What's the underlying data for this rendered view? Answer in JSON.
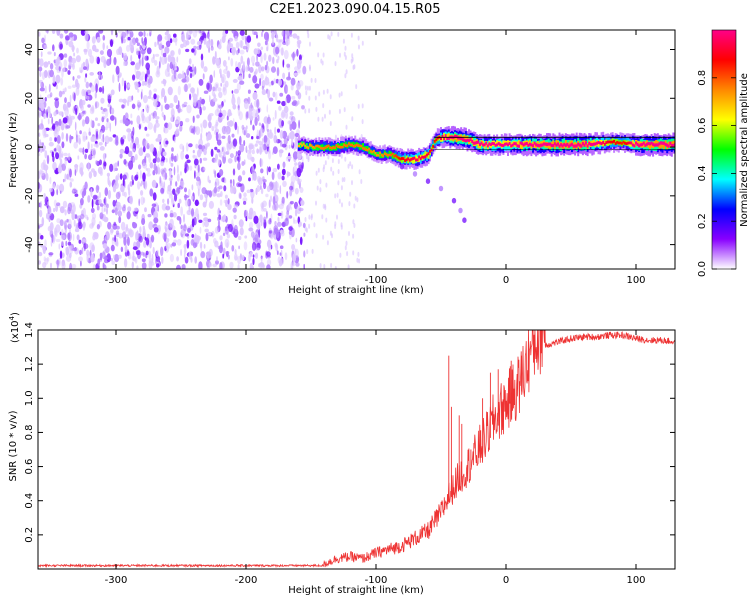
{
  "title": "C2E1.2023.090.04.15.R05",
  "chart_data": [
    {
      "type": "heatmap",
      "title": "C2E1.2023.090.04.15.R05",
      "xlabel": "Height of straight line (km)",
      "ylabel": "Frequency (Hz)",
      "xlim": [
        -360,
        130
      ],
      "ylim": [
        -50,
        48
      ],
      "xticks": [
        -300,
        -200,
        -100,
        0,
        100
      ],
      "yticks": [
        -40,
        -20,
        0,
        20,
        40
      ],
      "noise_region_x": [
        -360,
        -155
      ],
      "noise_intensity": 0.08,
      "signal_ridge": {
        "x": [
          -160,
          -150,
          -140,
          -130,
          -120,
          -110,
          -100,
          -90,
          -80,
          -70,
          -60,
          -55,
          -50,
          -40,
          -30,
          -20,
          -10,
          0,
          20,
          40,
          60,
          80,
          90,
          100,
          110,
          130
        ],
        "frequency": [
          1,
          0,
          0,
          0,
          1,
          0,
          -3,
          -3,
          -5,
          -5,
          -3,
          3,
          4,
          4,
          3,
          1,
          1,
          1,
          1,
          1,
          1,
          2,
          2,
          1,
          1,
          1
        ],
        "amplitude": [
          0.35,
          0.4,
          0.45,
          0.45,
          0.45,
          0.45,
          0.4,
          0.45,
          0.6,
          0.7,
          0.65,
          0.55,
          0.7,
          0.9,
          0.85,
          0.8,
          0.75,
          0.75,
          0.85,
          0.9,
          0.9,
          0.6,
          0.55,
          0.85,
          0.9,
          0.95
        ]
      },
      "branch": {
        "x": [
          -80,
          -70,
          -60,
          -50,
          -40,
          -35,
          -32
        ],
        "frequency": [
          -8,
          -11,
          -14,
          -17,
          -22,
          -26,
          -30
        ]
      }
    },
    {
      "type": "colorbar",
      "label": "Normalized spectral amplitude",
      "lim": [
        0,
        1
      ],
      "ticks": [
        "0.0",
        "0.2",
        "0.4",
        "0.6",
        "0.8"
      ],
      "colors": [
        "#ffffff",
        "#8800ff",
        "#0000ff",
        "#00ffff",
        "#00ff00",
        "#ffff00",
        "#ff8800",
        "#ff0000",
        "#ff0088"
      ]
    },
    {
      "type": "line",
      "xlabel": "Height of straight line (km)",
      "ylabel": "SNR (10 * v/v)",
      "yscale_label": "(x10",
      "yscale_exp": "4",
      "yscale_close": ")",
      "xlim": [
        -360,
        130
      ],
      "ylim": [
        0,
        1.4
      ],
      "xticks": [
        -300,
        -200,
        -100,
        0,
        100
      ],
      "yticks": [
        "0.2",
        "0.4",
        "0.6",
        "0.8",
        "1.0",
        "1.2",
        "1.4"
      ],
      "color": "#ee3333",
      "x": [
        -360,
        -300,
        -200,
        -140,
        -130,
        -120,
        -110,
        -100,
        -90,
        -80,
        -70,
        -60,
        -55,
        -50,
        -45,
        -40,
        -35,
        -30,
        -25,
        -20,
        -15,
        -10,
        -5,
        0,
        5,
        10,
        15,
        20,
        25,
        30,
        40,
        50,
        60,
        70,
        80,
        90,
        100,
        110,
        120,
        130
      ],
      "y": [
        0.02,
        0.02,
        0.02,
        0.02,
        0.05,
        0.06,
        0.05,
        0.08,
        0.1,
        0.12,
        0.16,
        0.2,
        0.25,
        0.3,
        0.38,
        0.45,
        0.5,
        0.55,
        0.6,
        0.66,
        0.72,
        0.8,
        0.85,
        0.9,
        0.95,
        1.0,
        1.1,
        1.2,
        1.27,
        1.31,
        1.33,
        1.35,
        1.36,
        1.36,
        1.37,
        1.37,
        1.35,
        1.34,
        1.34,
        1.33
      ],
      "spikes": [
        {
          "x": -44,
          "y": 1.25
        },
        {
          "x": -42,
          "y": 0.95
        },
        {
          "x": -36,
          "y": 0.9
        },
        {
          "x": -34,
          "y": 0.85
        },
        {
          "x": -27,
          "y": 0.7
        },
        {
          "x": -18,
          "y": 1.0
        },
        {
          "x": -12,
          "y": 1.15
        },
        {
          "x": -6,
          "y": 1.17
        },
        {
          "x": 4,
          "y": 1.22
        },
        {
          "x": 12,
          "y": 1.25
        }
      ]
    }
  ]
}
